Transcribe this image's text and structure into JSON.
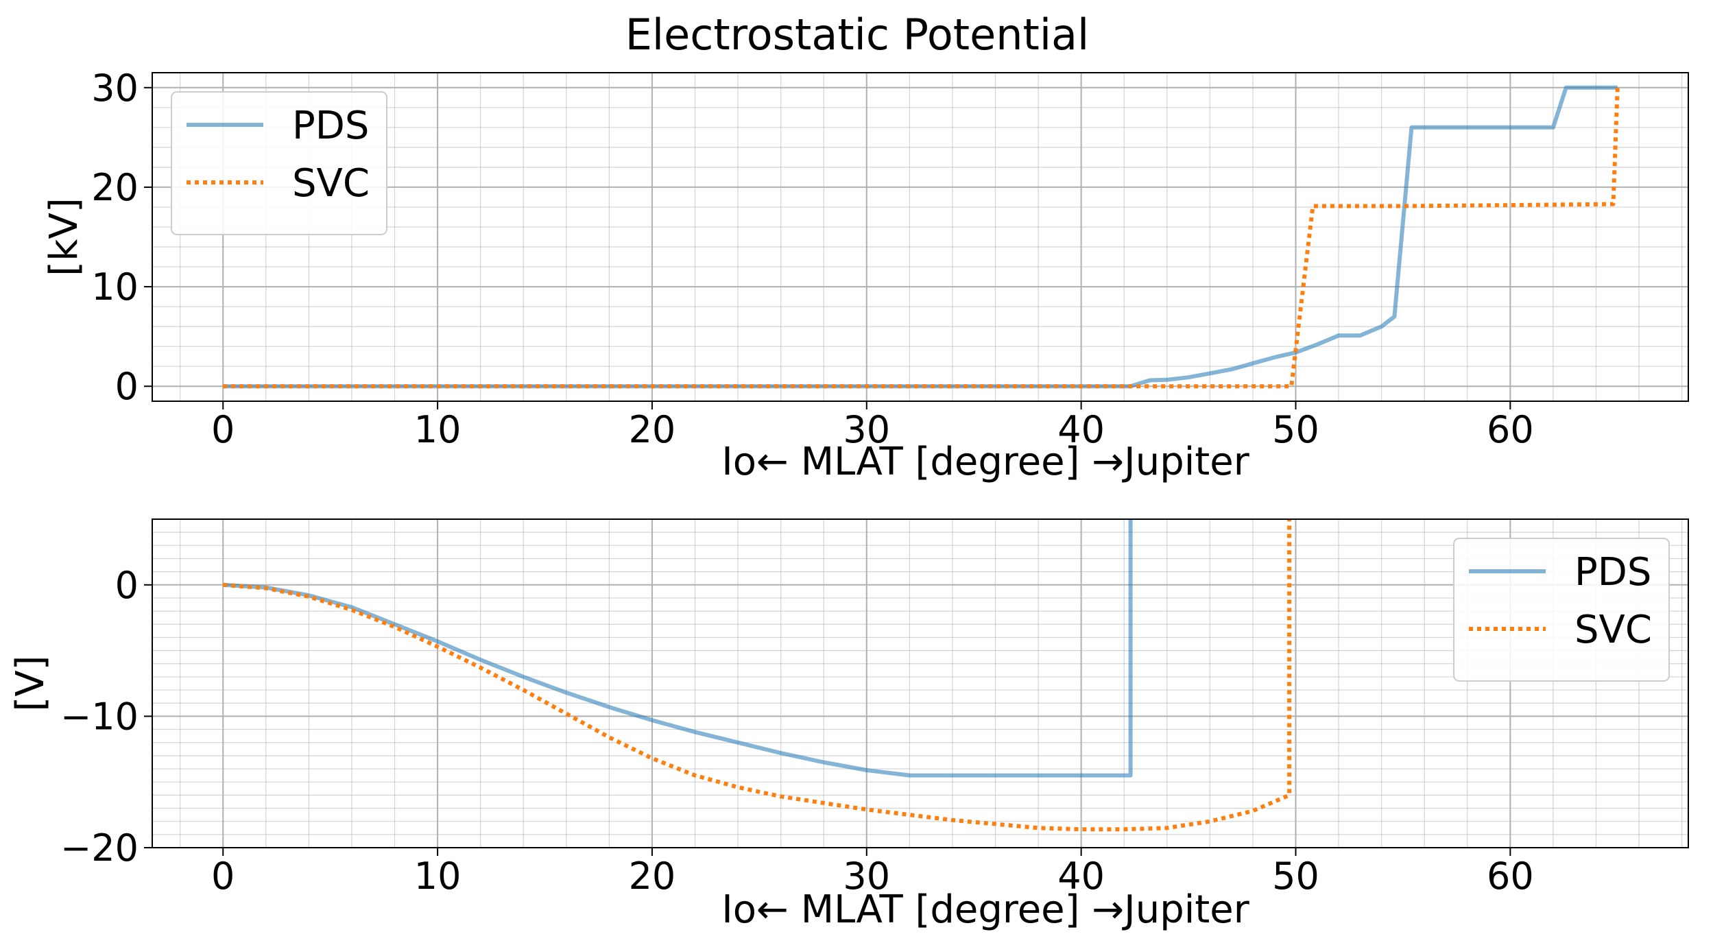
{
  "figure": {
    "title": "Electrostatic Potential"
  },
  "colors": {
    "pds": "#1f77b4",
    "svc": "#ff7f0e",
    "grid": "#b0b0b0",
    "axis": "#000000"
  },
  "chart_data": [
    {
      "type": "line",
      "title": "Electrostatic Potential",
      "xlabel": "Io← MLAT [degree] →Jupiter",
      "ylabel": "[kV]",
      "xlim": [
        -3.3,
        68.3
      ],
      "ylim": [
        -1.5,
        31.5
      ],
      "xticks": [
        0,
        10,
        20,
        30,
        40,
        50,
        60
      ],
      "xtick_labels": [
        "0",
        "10",
        "20",
        "30",
        "40",
        "50",
        "60"
      ],
      "yticks": [
        0,
        10,
        20,
        30
      ],
      "ytick_labels": [
        "0",
        "10",
        "20",
        "30"
      ],
      "grid": true,
      "minor_grid": true,
      "legend": {
        "position": "upper-left",
        "entries": [
          "PDS",
          "SVC"
        ]
      },
      "series": [
        {
          "name": "PDS",
          "style": "solid",
          "x": [
            0,
            10,
            20,
            30,
            40,
            42.3,
            43.2,
            44,
            45,
            46,
            47,
            48,
            49,
            50,
            51,
            52,
            53,
            54,
            54.6,
            55.4,
            56,
            60,
            62,
            62.6,
            63,
            64,
            65
          ],
          "y": [
            0,
            0,
            0,
            0,
            0,
            0,
            0.6,
            0.65,
            0.9,
            1.3,
            1.7,
            2.3,
            2.9,
            3.4,
            4.2,
            5.1,
            5.1,
            6.0,
            7.0,
            26.0,
            26.0,
            26.0,
            26.0,
            30.0,
            30.0,
            30.0,
            30.0
          ]
        },
        {
          "name": "SVC",
          "style": "dotted",
          "x": [
            0,
            10,
            20,
            30,
            40,
            49.8,
            50.8,
            55,
            60,
            64.8,
            65
          ],
          "y": [
            0,
            0,
            0,
            0,
            0,
            0,
            18.1,
            18.1,
            18.2,
            18.3,
            30.0
          ]
        }
      ]
    },
    {
      "type": "line",
      "xlabel": "Io← MLAT [degree] →Jupiter",
      "ylabel": "[V]",
      "xlim": [
        -3.3,
        68.3
      ],
      "ylim": [
        -20,
        5
      ],
      "xticks": [
        0,
        10,
        20,
        30,
        40,
        50,
        60
      ],
      "xtick_labels": [
        "0",
        "10",
        "20",
        "30",
        "40",
        "50",
        "60"
      ],
      "yticks": [
        -20,
        -10,
        0
      ],
      "ytick_labels": [
        "−20",
        "−10",
        "0"
      ],
      "grid": true,
      "minor_grid": true,
      "legend": {
        "position": "upper-right",
        "entries": [
          "PDS",
          "SVC"
        ]
      },
      "series": [
        {
          "name": "PDS",
          "style": "solid",
          "x": [
            0,
            2,
            4,
            6,
            8,
            10,
            12,
            14,
            16,
            18,
            20,
            22,
            24,
            26,
            28,
            30,
            32,
            34,
            36,
            38,
            40,
            42.3,
            42.3
          ],
          "y": [
            0,
            -0.2,
            -0.8,
            -1.7,
            -3.0,
            -4.3,
            -5.7,
            -7.0,
            -8.2,
            -9.3,
            -10.3,
            -11.2,
            -12.0,
            -12.8,
            -13.5,
            -14.1,
            -14.5,
            -14.5,
            -14.5,
            -14.5,
            -14.5,
            -14.5,
            5
          ]
        },
        {
          "name": "SVC",
          "style": "dotted",
          "x": [
            0,
            2,
            4,
            6,
            8,
            10,
            12,
            14,
            16,
            18,
            20,
            22,
            24,
            26,
            28,
            30,
            32,
            34,
            36,
            38,
            40,
            42,
            44,
            46,
            48,
            49.7,
            49.7
          ],
          "y": [
            0,
            -0.25,
            -0.9,
            -1.9,
            -3.2,
            -4.7,
            -6.3,
            -8.0,
            -9.8,
            -11.6,
            -13.2,
            -14.5,
            -15.4,
            -16.1,
            -16.6,
            -17.1,
            -17.5,
            -17.9,
            -18.2,
            -18.5,
            -18.6,
            -18.6,
            -18.5,
            -18.0,
            -17.2,
            -16.0,
            5
          ]
        }
      ]
    }
  ]
}
